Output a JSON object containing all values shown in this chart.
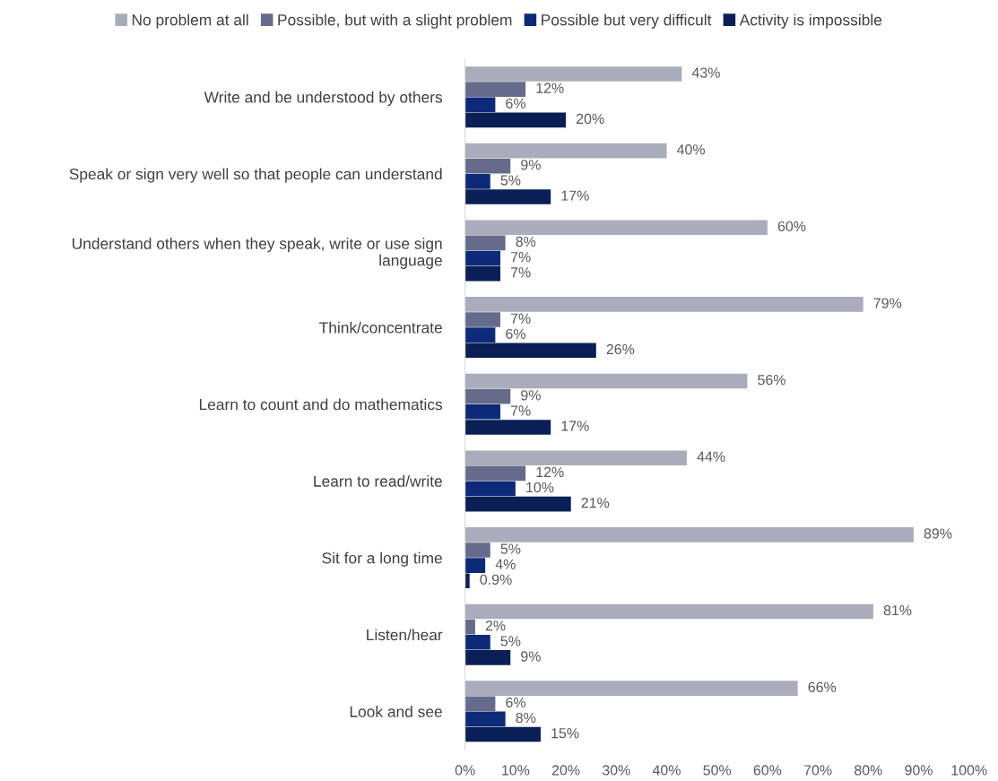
{
  "chart_data": {
    "type": "bar",
    "orientation": "horizontal",
    "categories": [
      "Write and be understood by others",
      "Speak or sign very well so that people can understand",
      "Understand others when they speak, write or use sign\nlanguage",
      "Think/concentrate",
      "Learn to count and do mathematics",
      "Learn to read/write",
      "Sit for a long time",
      "Listen/hear",
      "Look and see"
    ],
    "series": [
      {
        "name": "No problem at all",
        "color": "#a9acbb",
        "values": [
          43,
          40,
          60,
          79,
          56,
          44,
          89,
          81,
          66
        ],
        "value_labels": [
          "43%",
          "40%",
          "60%",
          "79%",
          "56%",
          "44%",
          "89%",
          "81%",
          "66%"
        ]
      },
      {
        "name": "Possible, but with a slight problem",
        "color": "#666b8c",
        "values": [
          12,
          9,
          8,
          7,
          9,
          12,
          5,
          2,
          6
        ],
        "value_labels": [
          "12%",
          "9%",
          "8%",
          "7%",
          "9%",
          "12%",
          "5%",
          "2%",
          "6%"
        ]
      },
      {
        "name": "Possible but very difficult",
        "color": "#0c2a78",
        "values": [
          6,
          5,
          7,
          6,
          7,
          10,
          4,
          5,
          8
        ],
        "value_labels": [
          "6%",
          "5%",
          "7%",
          "6%",
          "7%",
          "10%",
          "4%",
          "5%",
          "8%"
        ]
      },
      {
        "name": "Activity is impossible",
        "color": "#0a1f55",
        "values": [
          20,
          17,
          7,
          26,
          17,
          21,
          0.9,
          9,
          15
        ],
        "value_labels": [
          "20%",
          "17%",
          "7%",
          "26%",
          "17%",
          "21%",
          "0.9%",
          "9%",
          "15%"
        ]
      }
    ],
    "xlim": [
      0,
      100
    ],
    "xticks": [
      {
        "value": 0,
        "label": "0%"
      },
      {
        "value": 10,
        "label": "10%"
      },
      {
        "value": 20,
        "label": "20%"
      },
      {
        "value": 30,
        "label": "30%"
      },
      {
        "value": 40,
        "label": "40%"
      },
      {
        "value": 50,
        "label": "50%"
      },
      {
        "value": 60,
        "label": "60%"
      },
      {
        "value": 70,
        "label": "70%"
      },
      {
        "value": 80,
        "label": "80%"
      },
      {
        "value": 90,
        "label": "90%"
      },
      {
        "value": 100,
        "label": "100%"
      }
    ],
    "grid": false,
    "legend": "top"
  }
}
